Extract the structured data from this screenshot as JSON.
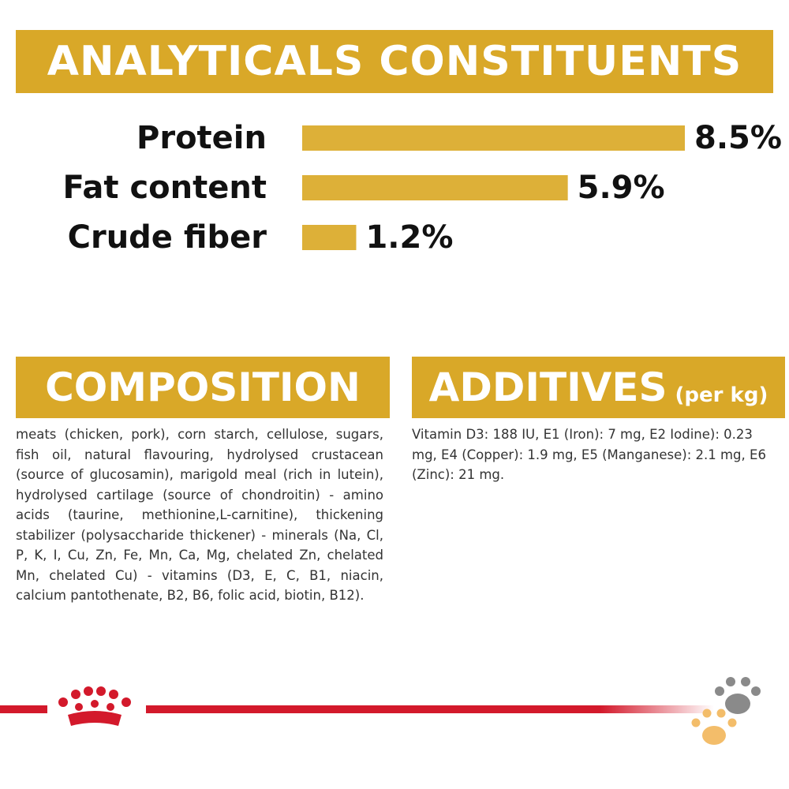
{
  "chart_data": {
    "type": "bar",
    "orientation": "horizontal",
    "title": "ANALYTICALS CONSTITUENTS",
    "categories": [
      "Protein",
      "Fat content",
      "Crude fiber"
    ],
    "values": [
      8.5,
      5.9,
      1.2
    ],
    "value_labels": [
      "8.5%",
      "5.9%",
      "1.2%"
    ],
    "color": "#ddb038"
  },
  "composition": {
    "title": "COMPOSITION",
    "text": "meats (chicken, pork), corn starch, cellulose, sugars, fish oil, natural flavouring, hydrolysed crustacean (source of glucosamin), marigold meal (rich in lutein), hydrolysed cartilage (source of chondroitin) - amino acids (taurine, methionine,L-carnitine), thickening stabilizer (polysaccharide thickener) - minerals (Na, Cl, P, K, I, Cu, Zn, Fe, Mn, Ca, Mg, chelated Zn, chelated Mn, chelated Cu) - vitamins (D3, E, C, B1, niacin, calcium pantothenate, B2, B6, folic acid, biotin, B12)."
  },
  "additives": {
    "title": "ADDITIVES",
    "unit": "(per kg)",
    "text": "Vitamin D3: 188 IU, E1 (Iron): 7 mg, E2 Iodine): 0.23 mg, E4 (Copper): 1.9 mg, E5 (Manganese): 2.1 mg, E6 (Zinc): 21 mg."
  }
}
